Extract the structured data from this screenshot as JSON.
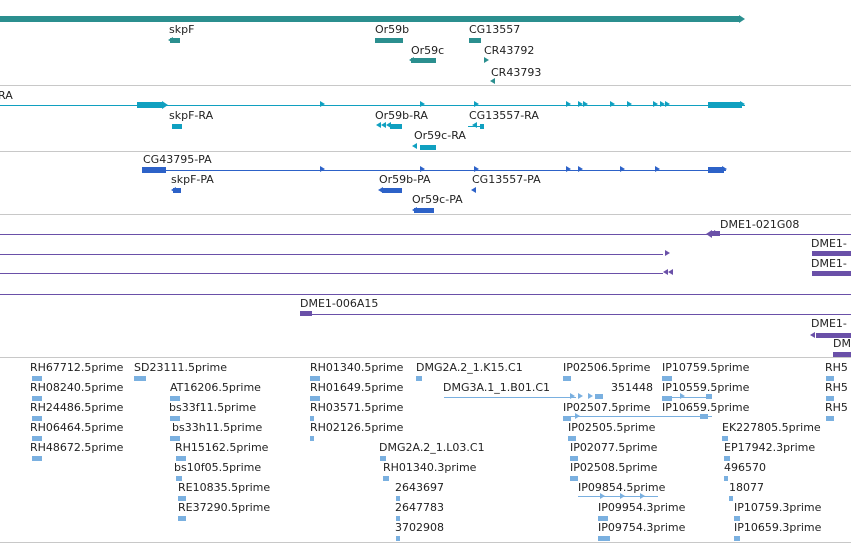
{
  "colors": {
    "gene": "#2b8f8f",
    "transcript": "#10a0c0",
    "protein": "#2d62c8",
    "bac": "#6a50a8",
    "est": "#7ab0e0",
    "separator": "#c8c8c8"
  },
  "tracks": {
    "genes": {
      "labels": [
        "skpF",
        "Or59b",
        "CG13557",
        "Or59c",
        "CR43792",
        "CR43793"
      ]
    },
    "transcripts": {
      "labels": [
        "RA",
        "skpF-RA",
        "Or59b-RA",
        "CG13557-RA",
        "Or59c-RA"
      ]
    },
    "proteins": {
      "labels": [
        "CG43795-PA",
        "skpF-PA",
        "Or59b-PA",
        "CG13557-PA",
        "Or59c-PA"
      ]
    },
    "bacs": {
      "labels": [
        "DME1-021G08",
        "DME1-",
        "DME1-",
        "DME1-006A15",
        "DME1-",
        "DME"
      ]
    },
    "ests": {
      "labels": [
        "RH67712.5prime",
        "SD23111.5prime",
        "RH08240.5prime",
        "AT16206.5prime",
        "RH24486.5prime",
        "bs33f11.5prime",
        "RH06464.5prime",
        "bs33h11.5prime",
        "RH48672.5prime",
        "RH15162.5prime",
        "bs10f05.5prime",
        "RE10835.5prime",
        "RE37290.5prime",
        "RH01340.5prime",
        "DMG2A.2_1.K15.C1",
        "RH01649.5prime",
        "DMG3A.1_1.B01.C1",
        "RH03571.5prime",
        "RH02126.5prime",
        "DMG2A.2_1.L03.C1",
        "RH01340.3prime",
        "2643697",
        "2647783",
        "3702908",
        "IP02506.5prime",
        "IP10759.5prime",
        "351448",
        "IP10559.5prime",
        "IP02507.5prime",
        "IP10659.5prime",
        "IP02505.5prime",
        "EK227805.5prime",
        "IP02077.5prime",
        "EP17942.3prime",
        "IP02508.5prime",
        "496570",
        "IP09854.5prime",
        "18077",
        "IP09954.3prime",
        "IP10759.3prime",
        "IP09754.3prime",
        "IP10659.3prime",
        "RH5",
        "RH5",
        "RH5"
      ]
    }
  }
}
